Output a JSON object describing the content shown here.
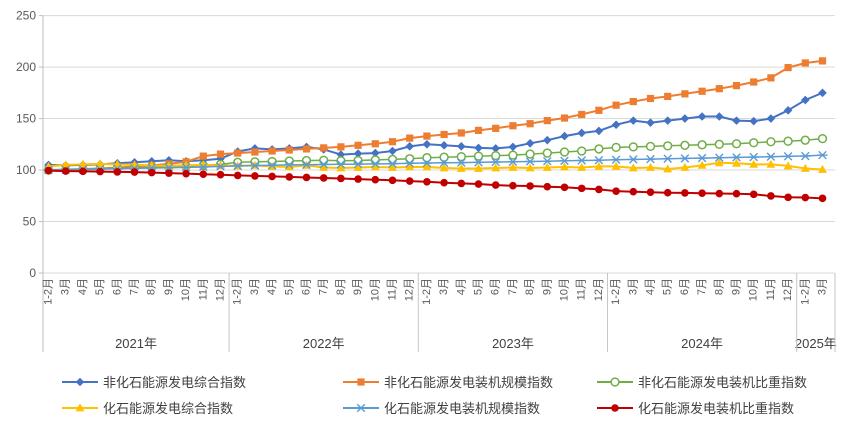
{
  "chart_data": {
    "type": "line",
    "title": "",
    "grid": true,
    "legend_position": "bottom",
    "y_axis": {
      "min": 0,
      "max": 250,
      "ticks": [
        0,
        50,
        100,
        150,
        200,
        250
      ]
    },
    "x_axis": {
      "years": [
        {
          "label": "2021年",
          "months": [
            "1-2月",
            "3月",
            "4月",
            "5月",
            "6月",
            "7月",
            "8月",
            "9月",
            "10月",
            "11月",
            "12月"
          ]
        },
        {
          "label": "2022年",
          "months": [
            "1-2月",
            "3月",
            "4月",
            "5月",
            "6月",
            "7月",
            "8月",
            "9月",
            "10月",
            "11月",
            "12月"
          ]
        },
        {
          "label": "2023年",
          "months": [
            "1-2月",
            "3月",
            "4月",
            "5月",
            "6月",
            "7月",
            "8月",
            "9月",
            "10月",
            "11月",
            "12月"
          ]
        },
        {
          "label": "2024年",
          "months": [
            "1-2月",
            "3月",
            "4月",
            "5月",
            "6月",
            "7月",
            "8月",
            "9月",
            "10月",
            "11月",
            "12月"
          ]
        },
        {
          "label": "2025年",
          "months": [
            "1-2月",
            "3月"
          ]
        }
      ]
    },
    "series": [
      {
        "name": "非化石能源发电综合指数",
        "color": "#4472C4",
        "marker": "diamond",
        "line_width": 2,
        "values": [
          105,
          104.5,
          105,
          105.5,
          106.5,
          107.5,
          108.5,
          109.5,
          108.5,
          109.5,
          111,
          118,
          121,
          120,
          121,
          122.5,
          120,
          115,
          116,
          116.5,
          118.5,
          123,
          125,
          124,
          123,
          121.5,
          121,
          122.5,
          126,
          129,
          133,
          136,
          138,
          144,
          148,
          146,
          148,
          150,
          152,
          152,
          148,
          147.5,
          150,
          158,
          168,
          175
        ]
      },
      {
        "name": "非化石能源发电装机规模指数",
        "color": "#ED7D31",
        "marker": "square",
        "line_width": 2,
        "values": [
          100,
          100.5,
          101,
          101.5,
          102.5,
          103.5,
          104.5,
          106,
          108,
          113.5,
          115.5,
          116.5,
          117.5,
          118.5,
          119.5,
          120.5,
          121.5,
          122.5,
          124,
          125.5,
          127.5,
          131,
          133,
          134.5,
          136,
          138.5,
          140.5,
          143,
          145,
          148,
          150.5,
          154,
          158,
          163,
          166.5,
          169.5,
          171.5,
          174,
          176.5,
          179,
          182,
          185.5,
          189.5,
          199.5,
          204,
          206
        ]
      },
      {
        "name": "非化石能源发电装机比重指数",
        "color": "#70AD47",
        "marker": "circle-open",
        "line_width": 1.5,
        "values": [
          100,
          100.3,
          100.8,
          101.2,
          101.8,
          102.3,
          102.8,
          103.3,
          103.8,
          104.5,
          105.5,
          107.5,
          108,
          108.3,
          108.8,
          109.2,
          109.5,
          109,
          109.3,
          109.8,
          110.3,
          111,
          112,
          112.5,
          113,
          113.5,
          114,
          114.5,
          115.5,
          116.5,
          117.5,
          118.5,
          120.5,
          122,
          122.5,
          123,
          123.5,
          124,
          124.5,
          125,
          125.5,
          126.5,
          127.5,
          128,
          129,
          130.5
        ]
      },
      {
        "name": "化石能源发电综合指数",
        "color": "#FFC000",
        "marker": "triangle",
        "line_width": 2,
        "values": [
          103.5,
          105,
          105.5,
          106,
          105.5,
          105,
          104.5,
          104,
          104.5,
          105,
          104.5,
          104,
          104.5,
          103.5,
          103,
          104.5,
          102.5,
          102,
          102.5,
          103,
          102.5,
          103,
          103,
          102,
          101.5,
          101.5,
          102,
          102.5,
          102,
          102.5,
          103,
          102.5,
          103.5,
          103.5,
          102,
          102.5,
          101,
          102.5,
          104.5,
          107,
          106.5,
          105.5,
          105.5,
          104,
          101.5,
          100.5
        ]
      },
      {
        "name": "化石能源发电装机规模指数",
        "color": "#5B9BD5",
        "marker": "asterisk",
        "line_width": 1.5,
        "values": [
          100,
          100.3,
          100.6,
          101,
          101.3,
          101.6,
          102,
          102.3,
          102.6,
          103,
          103.5,
          104,
          104.3,
          104.6,
          105,
          105.2,
          105.4,
          105.6,
          105.8,
          106,
          106.2,
          106.5,
          106.8,
          107,
          107.2,
          107.5,
          107.8,
          108,
          108.3,
          108.6,
          109,
          109.3,
          109.6,
          110,
          110.3,
          110.6,
          111,
          111.3,
          111.6,
          112,
          112.3,
          112.6,
          113,
          113.3,
          113.6,
          114.5
        ]
      },
      {
        "name": "化石能源发电装机比重指数",
        "color": "#C00000",
        "marker": "circle",
        "line_width": 2,
        "values": [
          99.5,
          99,
          98.8,
          98.5,
          98.2,
          98,
          97.5,
          97,
          96.5,
          96,
          95.5,
          94.8,
          94.3,
          93.8,
          93.3,
          92.8,
          92.3,
          91.8,
          91.2,
          90.6,
          90,
          89.3,
          88.6,
          87.7,
          87,
          86.4,
          85.4,
          84.8,
          84.5,
          83.8,
          83.2,
          82.2,
          81.2,
          79.5,
          79,
          78.5,
          78,
          77.8,
          77.5,
          77.2,
          77,
          76.4,
          74.8,
          73.5,
          73.3,
          72.5
        ]
      }
    ]
  }
}
